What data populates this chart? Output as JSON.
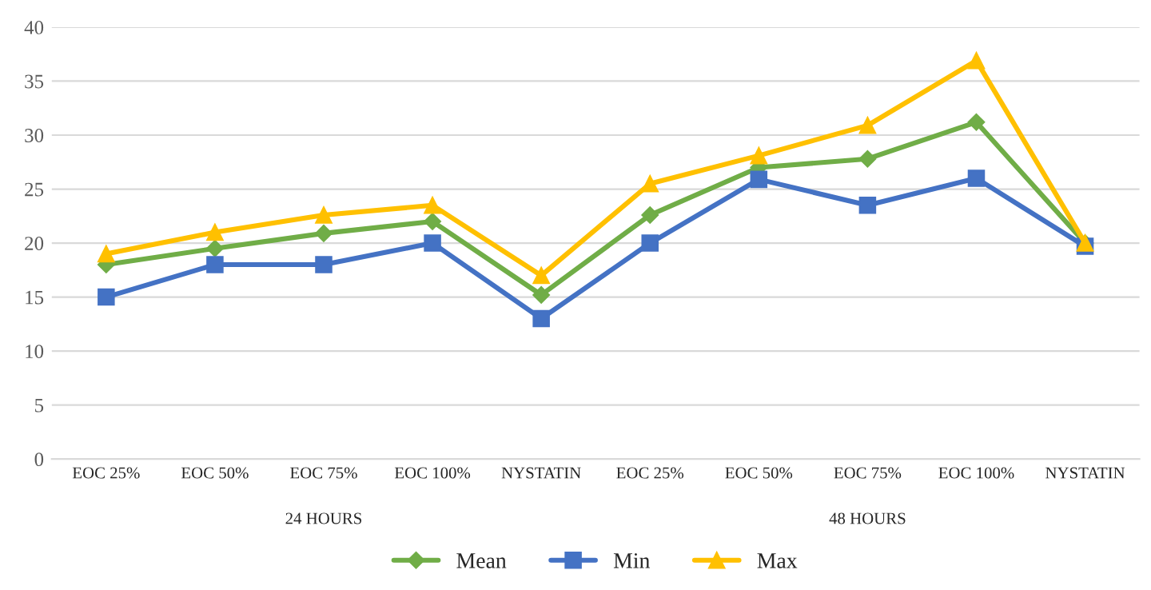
{
  "chart_data": {
    "type": "line",
    "categories": [
      "EOC 25%",
      "EOC 50%",
      "EOC 75%",
      "EOC 100%",
      "NYSTATIN",
      "EOC 25%",
      "EOC 50%",
      "EOC 75%",
      "EOC 100%",
      "NYSTATIN"
    ],
    "series": [
      {
        "name": "Mean",
        "color": "#70ad47",
        "marker": "diamond",
        "values": [
          18,
          19.5,
          20.9,
          22,
          15.2,
          22.6,
          27,
          27.8,
          31.2,
          20
        ]
      },
      {
        "name": "Min",
        "color": "#4472c4",
        "marker": "square",
        "values": [
          15,
          18,
          18,
          20,
          13,
          20,
          25.9,
          23.5,
          26,
          19.7
        ]
      },
      {
        "name": "Max",
        "color": "#ffc000",
        "marker": "triangle",
        "values": [
          19,
          21,
          22.6,
          23.5,
          17,
          25.5,
          28.1,
          30.9,
          36.9,
          20
        ]
      }
    ],
    "ylim": [
      0,
      40
    ],
    "yticks": [
      0,
      5,
      10,
      15,
      20,
      25,
      30,
      35,
      40
    ],
    "grid": "y",
    "legend": "bottom",
    "annotations": [
      "24 HOURS",
      "48 HOURS"
    ]
  }
}
